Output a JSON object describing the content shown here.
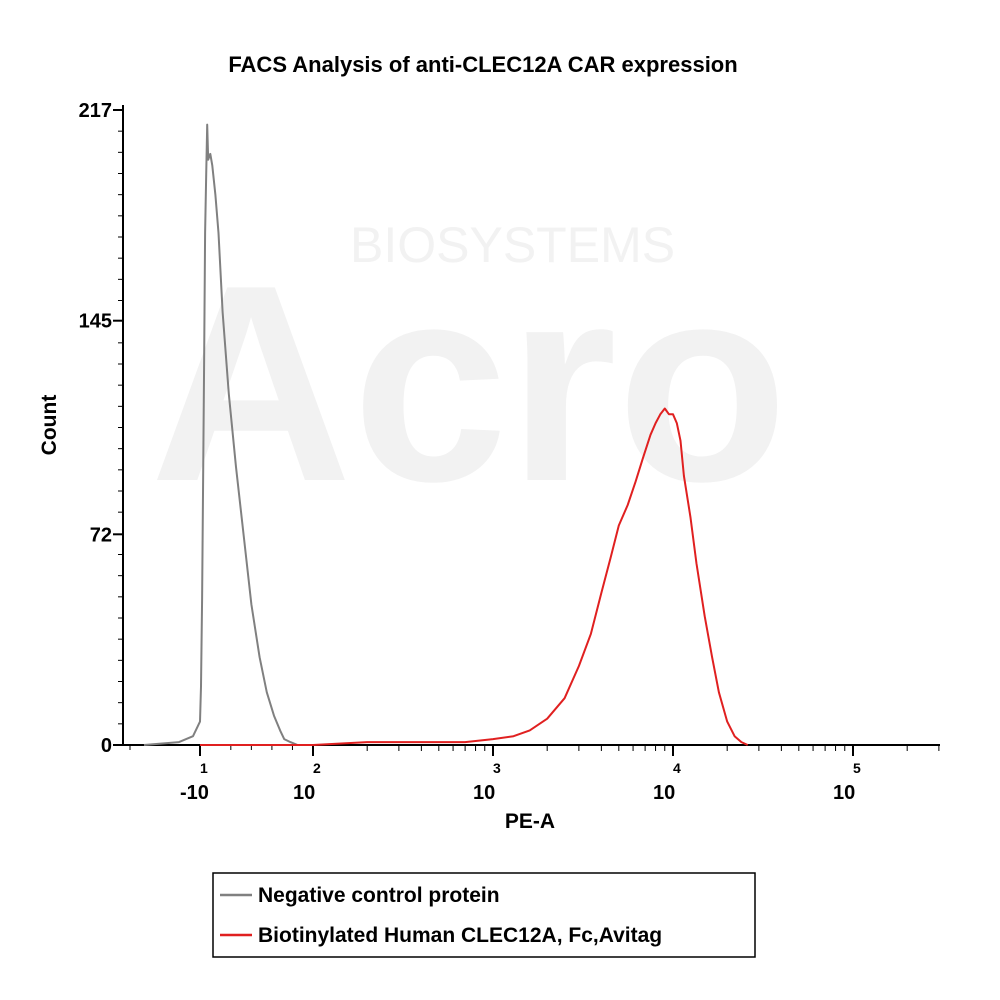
{
  "chart_data": {
    "type": "line",
    "title": "FACS Analysis of anti-CLEC12A CAR expression",
    "xlabel": "PE-A",
    "ylabel": "Count",
    "x_scale": "log",
    "xlim": [
      -20,
      220000
    ],
    "ylim": [
      0,
      217
    ],
    "y_ticks": [
      "0",
      "72",
      "145",
      "217"
    ],
    "x_ticks": [
      {
        "base": "-10",
        "exp": "1",
        "value": -10
      },
      {
        "base": "10",
        "exp": "2",
        "value": 100
      },
      {
        "base": "10",
        "exp": "3",
        "value": 1000
      },
      {
        "base": "10",
        "exp": "4",
        "value": 10000
      },
      {
        "base": "10",
        "exp": "5",
        "value": 100000
      }
    ],
    "legend_position": "bottom",
    "series": [
      {
        "name": "Negative control protein",
        "color": "#808080",
        "points": [
          [
            -18,
            0
          ],
          [
            -13,
            1
          ],
          [
            -11,
            3
          ],
          [
            -10,
            8
          ],
          [
            -9,
            20
          ],
          [
            -8,
            50
          ],
          [
            -7,
            90
          ],
          [
            -6,
            130
          ],
          [
            -5,
            175
          ],
          [
            -4,
            195
          ],
          [
            -3,
            212
          ],
          [
            -2,
            200
          ],
          [
            0,
            202
          ],
          [
            2,
            198
          ],
          [
            5,
            188
          ],
          [
            8,
            175
          ],
          [
            12,
            148
          ],
          [
            18,
            120
          ],
          [
            25,
            95
          ],
          [
            33,
            70
          ],
          [
            40,
            48
          ],
          [
            48,
            30
          ],
          [
            55,
            18
          ],
          [
            62,
            10
          ],
          [
            68,
            5
          ],
          [
            72,
            2
          ],
          [
            78,
            1
          ],
          [
            85,
            0
          ]
        ]
      },
      {
        "name": "Biotinylated Human CLEC12A, Fc,Avitag",
        "color": "#e02020",
        "points": [
          [
            -10,
            0
          ],
          [
            100,
            0
          ],
          [
            200,
            1
          ],
          [
            400,
            1
          ],
          [
            700,
            1
          ],
          [
            1000,
            2
          ],
          [
            1300,
            3
          ],
          [
            1600,
            5
          ],
          [
            2000,
            9
          ],
          [
            2500,
            16
          ],
          [
            3000,
            27
          ],
          [
            3500,
            38
          ],
          [
            4000,
            52
          ],
          [
            4500,
            64
          ],
          [
            5000,
            75
          ],
          [
            5600,
            82
          ],
          [
            6200,
            90
          ],
          [
            6800,
            98
          ],
          [
            7500,
            106
          ],
          [
            8000,
            110
          ],
          [
            8500,
            113
          ],
          [
            9000,
            115
          ],
          [
            9500,
            113
          ],
          [
            10000,
            113
          ],
          [
            10500,
            110
          ],
          [
            11000,
            104
          ],
          [
            11500,
            92
          ],
          [
            12500,
            78
          ],
          [
            13500,
            62
          ],
          [
            15000,
            44
          ],
          [
            16500,
            30
          ],
          [
            18000,
            18
          ],
          [
            20000,
            8
          ],
          [
            22000,
            3
          ],
          [
            24000,
            1
          ],
          [
            26000,
            0
          ]
        ]
      }
    ]
  }
}
